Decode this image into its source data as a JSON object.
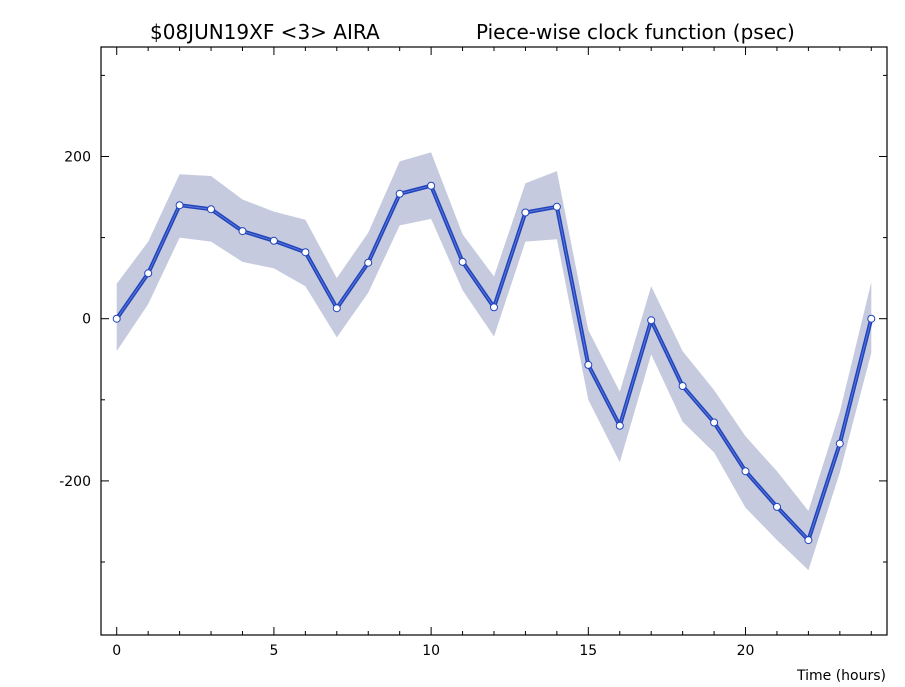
{
  "chart_data": {
    "type": "line",
    "title_left": "$08JUN19XF <3>  AIRA",
    "title_right": "Piece-wise clock function (psec)",
    "xlabel": "Time (hours)",
    "ylabel": "",
    "xlim": [
      -0.5,
      24.5
    ],
    "ylim": [
      -390,
      335
    ],
    "x_major_ticks": [
      0,
      5,
      10,
      15,
      20
    ],
    "x_minor_ticks": [
      0,
      1,
      2,
      3,
      4,
      5,
      6,
      7,
      8,
      9,
      10,
      11,
      12,
      13,
      14,
      15,
      16,
      17,
      18,
      19,
      20,
      21,
      22,
      23,
      24
    ],
    "y_major_ticks": [
      -200,
      0,
      200
    ],
    "y_minor_ticks": [
      -300,
      -200,
      -100,
      0,
      100,
      200,
      300
    ],
    "grid": false,
    "legend": "none",
    "colors": {
      "line": "#2244bb",
      "band": "#c5cade",
      "marker_fill": "#ffffff",
      "marker_stroke": "#2244bb",
      "frame": "#000000"
    },
    "series": [
      {
        "x": [
          0,
          1,
          2,
          3,
          4,
          5,
          6,
          7,
          8,
          9,
          10,
          11,
          12,
          13,
          14,
          15,
          16,
          17,
          18,
          19,
          20,
          21,
          22,
          23,
          24
        ],
        "values": [
          0,
          56,
          140,
          135,
          108,
          96,
          82,
          13,
          69,
          154,
          164,
          70,
          14,
          131,
          138,
          -57,
          -132,
          -2,
          -83,
          -128,
          -188,
          -232,
          -273,
          -154,
          0
        ],
        "band_upper": [
          43,
          95,
          178,
          176,
          147,
          132,
          122,
          50,
          106,
          194,
          205,
          104,
          52,
          167,
          182,
          -14,
          -90,
          40,
          -40,
          -88,
          -145,
          -188,
          -237,
          -115,
          45
        ],
        "band_lower": [
          -40,
          18,
          100,
          95,
          70,
          62,
          40,
          -23,
          32,
          115,
          123,
          35,
          -22,
          95,
          98,
          -100,
          -177,
          -44,
          -127,
          -165,
          -233,
          -273,
          -310,
          -190,
          -42
        ]
      }
    ]
  }
}
